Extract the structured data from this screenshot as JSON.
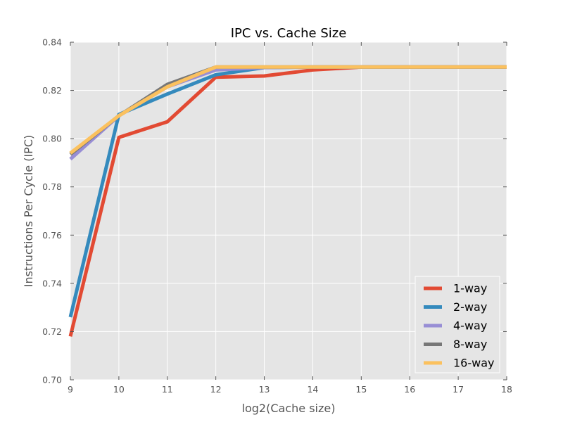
{
  "chart_data": {
    "type": "line",
    "title": "IPC vs. Cache Size",
    "xlabel": "log2(Cache size)",
    "ylabel": "Instructions Per Cycle (IPC)",
    "xlim": [
      9,
      18
    ],
    "ylim": [
      0.7,
      0.84
    ],
    "x_ticks": [
      "9",
      "10",
      "11",
      "12",
      "13",
      "14",
      "15",
      "16",
      "17",
      "18"
    ],
    "y_ticks": [
      "0.70",
      "0.72",
      "0.74",
      "0.76",
      "0.78",
      "0.80",
      "0.82",
      "0.84"
    ],
    "grid": true,
    "legend_position": "lower-right",
    "x": [
      9,
      10,
      11,
      12,
      13,
      14,
      15,
      16,
      17,
      18
    ],
    "series": [
      {
        "name": "1-way",
        "color": "#e24a33",
        "values": [
          0.718,
          0.8005,
          0.807,
          0.8255,
          0.826,
          0.8285,
          0.8297,
          0.8297,
          0.8297,
          0.8297
        ]
      },
      {
        "name": "2-way",
        "color": "#348abd",
        "values": [
          0.726,
          0.81,
          0.8185,
          0.8265,
          0.8295,
          0.8297,
          0.8297,
          0.8297,
          0.8297,
          0.8297
        ]
      },
      {
        "name": "4-way",
        "color": "#988ed5",
        "values": [
          0.7915,
          0.8095,
          0.8215,
          0.8285,
          0.8295,
          0.8297,
          0.8297,
          0.8297,
          0.8297,
          0.8297
        ]
      },
      {
        "name": "8-way",
        "color": "#777777",
        "values": [
          0.7935,
          0.8095,
          0.8225,
          0.8297,
          0.8297,
          0.8297,
          0.8297,
          0.8297,
          0.8297,
          0.8297
        ]
      },
      {
        "name": "16-way",
        "color": "#fbc15e",
        "values": [
          0.794,
          0.8095,
          0.8215,
          0.8297,
          0.8297,
          0.8297,
          0.8297,
          0.8297,
          0.8297,
          0.8297
        ]
      }
    ]
  }
}
